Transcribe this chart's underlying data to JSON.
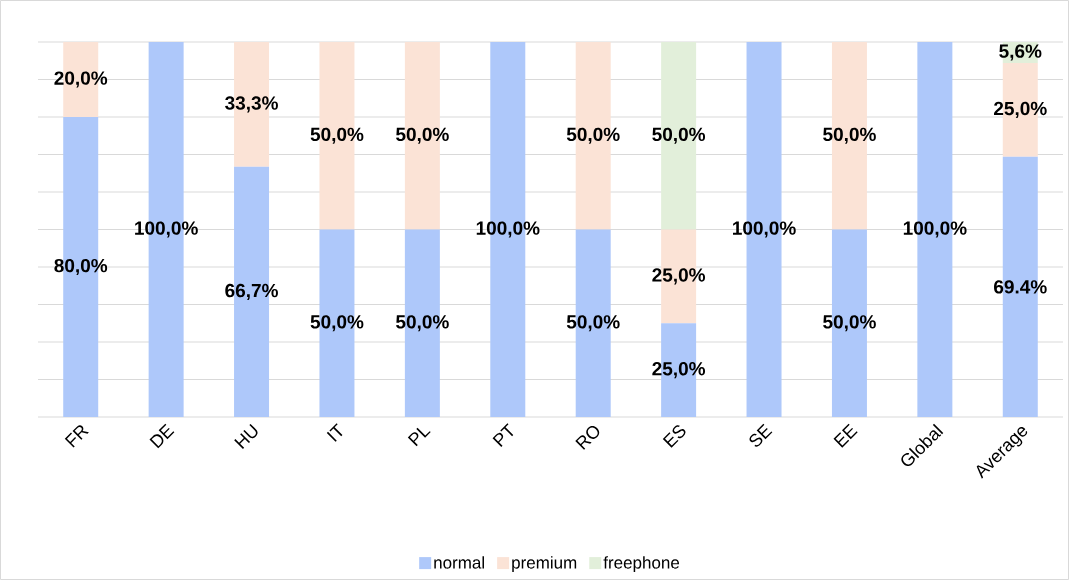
{
  "chart_data": {
    "type": "bar",
    "stacked": true,
    "categories": [
      "FR",
      "DE",
      "HU",
      "IT",
      "PL",
      "PT",
      "RO",
      "ES",
      "SE",
      "EE",
      "Global",
      "Average"
    ],
    "series": [
      {
        "name": "normal",
        "color": "#aec8fa",
        "values": [
          80.0,
          100.0,
          66.7,
          50.0,
          50.0,
          100.0,
          50.0,
          25.0,
          100.0,
          50.0,
          100.0,
          69.4
        ],
        "value_labels": [
          "80,0%",
          "100,0%",
          "66,7%",
          "50,0%",
          "50,0%",
          "100,0%",
          "50,0%",
          "25,0%",
          "100,0%",
          "50,0%",
          "100,0%",
          "69.4%"
        ]
      },
      {
        "name": "premium",
        "color": "#fbe3d6",
        "values": [
          20.0,
          0,
          33.3,
          50.0,
          50.0,
          0,
          50.0,
          25.0,
          0,
          50.0,
          0,
          25.0
        ],
        "value_labels": [
          "20,0%",
          null,
          "33,3%",
          "50,0%",
          "50,0%",
          null,
          "50,0%",
          "25,0%",
          null,
          "50,0%",
          null,
          "25,0%"
        ]
      },
      {
        "name": "freephone",
        "color": "#e2efda",
        "values": [
          0,
          0,
          0,
          0,
          0,
          0,
          0,
          50.0,
          0,
          0,
          0,
          5.6
        ],
        "value_labels": [
          null,
          null,
          null,
          null,
          null,
          null,
          null,
          "50,0%",
          null,
          null,
          null,
          "5,6%"
        ]
      }
    ],
    "ylim": [
      0,
      100
    ],
    "yticks": [
      {
        "value": 0,
        "label": null
      },
      {
        "value": 10,
        "label": null
      },
      {
        "value": 20,
        "label": null
      },
      {
        "value": 30,
        "label": null
      },
      {
        "value": 40,
        "label": null
      },
      {
        "value": 50,
        "label": null
      },
      {
        "value": 60,
        "label": null
      },
      {
        "value": 70,
        "label": null
      },
      {
        "value": 80,
        "label": null
      },
      {
        "value": 90,
        "label": null
      },
      {
        "value": 100,
        "label": null
      }
    ],
    "tick_labels": "x",
    "grid": "y",
    "legend": "bottom"
  }
}
